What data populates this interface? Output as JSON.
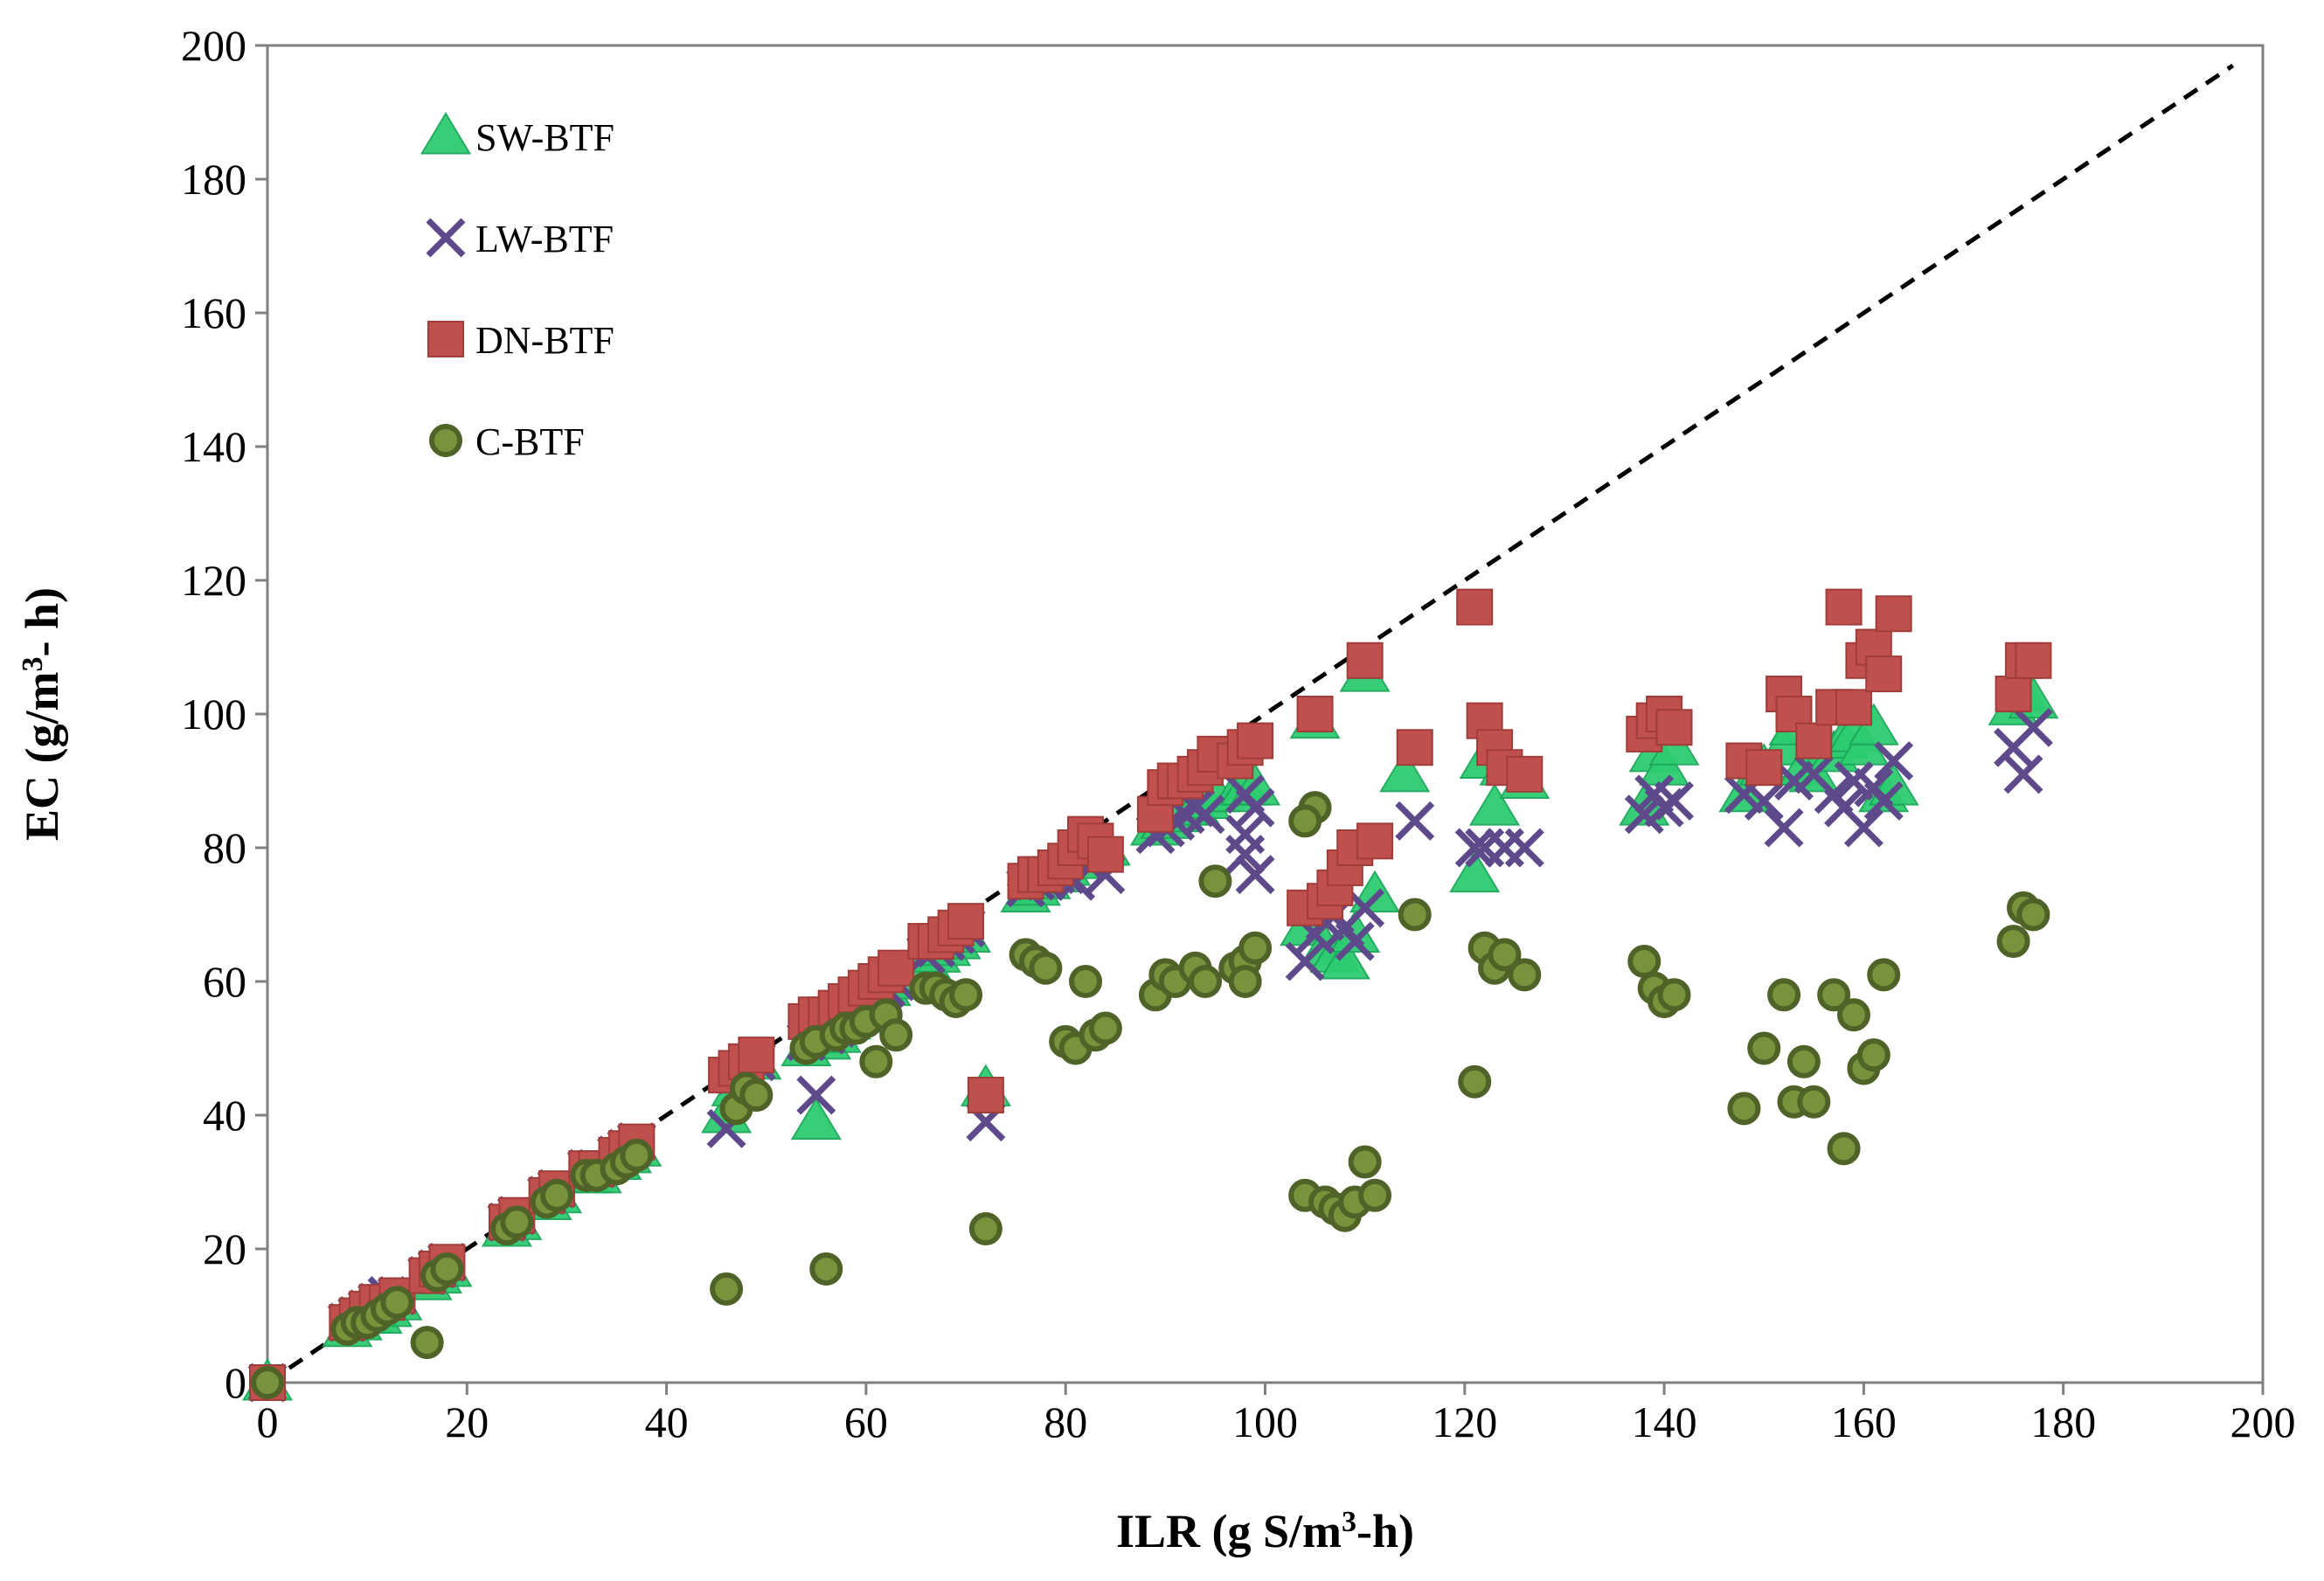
{
  "chart_data": {
    "type": "scatter",
    "title": "",
    "xlabel": "ILR (g S/m3-h)",
    "xlabel_parts": {
      "main": "ILR (g S/m",
      "sup": "3",
      "rest": "-h)"
    },
    "ylabel": "EC (g/m3- h)",
    "ylabel_parts": {
      "main": "EC (g/m",
      "sup": "3",
      "rest": "- h)"
    },
    "xlim": [
      0,
      200
    ],
    "ylim": [
      0,
      200
    ],
    "xticks": [
      "0",
      "20",
      "40",
      "60",
      "80",
      "100",
      "120",
      "140",
      "160",
      "180",
      "200"
    ],
    "yticks": [
      "0",
      "20",
      "40",
      "60",
      "80",
      "100",
      "120",
      "140",
      "160",
      "180",
      "200"
    ],
    "grid": false,
    "legend_position": "top-left",
    "reference_line": {
      "name": "100% removal (1:1 line)",
      "style": "dashed",
      "x": [
        0,
        197
      ],
      "y": [
        0,
        197
      ]
    },
    "series": [
      {
        "name": "SW-BTF",
        "marker": "triangle",
        "color": "#2ecc71",
        "stroke": "#1aa85a",
        "x": [
          0,
          8,
          9,
          10,
          11,
          12,
          13,
          16,
          17,
          18,
          24,
          25,
          28,
          29,
          32,
          33,
          35,
          36,
          37,
          46,
          47,
          48,
          49,
          54,
          55,
          56,
          57,
          58,
          59,
          60,
          61,
          62,
          63,
          66,
          67,
          68,
          69,
          70,
          72,
          76,
          77,
          78,
          79,
          80,
          81,
          82,
          83,
          84,
          89,
          90,
          91,
          92,
          93,
          94,
          95,
          97,
          98,
          99,
          104,
          105,
          106,
          107,
          108,
          109,
          110,
          111,
          114,
          121,
          122,
          123,
          124,
          126,
          138,
          139,
          140,
          141,
          148,
          150,
          152,
          153,
          154,
          155,
          157,
          158,
          159,
          160,
          161,
          162,
          163,
          175,
          176,
          177
        ],
        "y": [
          0,
          8,
          9,
          10,
          10,
          11,
          12,
          15,
          16,
          17,
          23,
          24,
          27,
          28,
          31,
          31,
          33,
          34,
          35,
          40,
          44,
          46,
          48,
          50,
          39,
          51,
          52,
          54,
          55,
          56,
          57,
          59,
          60,
          63,
          64,
          65,
          66,
          67,
          44,
          73,
          74,
          75,
          76,
          77,
          78,
          79,
          79,
          80,
          83,
          84,
          85,
          86,
          86,
          87,
          88,
          88,
          89,
          89,
          68,
          99,
          65,
          64,
          63,
          67,
          106,
          73,
          91,
          76,
          93,
          86,
          92,
          90,
          86,
          94,
          92,
          95,
          88,
          92,
          95,
          98,
          92,
          91,
          94,
          96,
          97,
          95,
          98,
          88,
          89,
          101,
          103,
          102
        ]
      },
      {
        "name": "LW-BTF",
        "marker": "x",
        "color": "#5e4a8b",
        "stroke": "#5e4a8b",
        "x": [
          0,
          8,
          9,
          10,
          11,
          12,
          13,
          16,
          17,
          18,
          24,
          25,
          28,
          29,
          32,
          33,
          35,
          36,
          37,
          46,
          47,
          48,
          49,
          54,
          55,
          56,
          57,
          58,
          59,
          60,
          61,
          62,
          63,
          66,
          67,
          68,
          69,
          70,
          72,
          76,
          77,
          78,
          79,
          80,
          81,
          82,
          83,
          84,
          89,
          90,
          91,
          92,
          93,
          94,
          98,
          99,
          98,
          99,
          98,
          104,
          105,
          106,
          107,
          108,
          109,
          110,
          115,
          121,
          122,
          124,
          126,
          138,
          139,
          140,
          141,
          148,
          150,
          152,
          153,
          155,
          157,
          158,
          159,
          160,
          161,
          162,
          163,
          175,
          176,
          177
        ],
        "y": [
          0,
          9,
          10,
          11,
          12,
          13,
          13,
          16,
          17,
          18,
          24,
          25,
          28,
          29,
          32,
          32,
          34,
          35,
          36,
          38,
          46,
          47,
          48,
          51,
          43,
          52,
          53,
          55,
          56,
          57,
          58,
          59,
          60,
          64,
          65,
          66,
          67,
          68,
          39,
          74,
          75,
          75,
          76,
          76,
          75,
          78,
          79,
          76,
          82,
          83,
          84,
          85,
          86,
          85,
          79,
          86,
          82,
          76,
          88,
          63,
          67,
          69,
          70,
          68,
          66,
          71,
          84,
          80,
          80,
          80,
          80,
          85,
          88,
          86,
          87,
          88,
          87,
          83,
          90,
          91,
          88,
          86,
          90,
          83,
          89,
          87,
          93,
          95,
          91,
          98
        ]
      },
      {
        "name": "DN-BTF",
        "marker": "square",
        "color": "#c0504d",
        "stroke": "#a03d3a",
        "x": [
          0,
          8,
          9,
          10,
          11,
          12,
          13,
          16,
          17,
          18,
          24,
          25,
          28,
          29,
          32,
          33,
          35,
          36,
          37,
          46,
          47,
          48,
          49,
          54,
          55,
          56,
          57,
          58,
          59,
          60,
          61,
          62,
          63,
          66,
          67,
          68,
          69,
          70,
          72,
          76,
          77,
          78,
          79,
          80,
          81,
          82,
          83,
          84,
          89,
          90,
          91,
          92,
          93,
          94,
          95,
          97,
          98,
          99,
          104,
          105,
          106,
          107,
          108,
          109,
          110,
          111,
          115,
          121,
          122,
          123,
          124,
          126,
          138,
          139,
          140,
          141,
          148,
          150,
          152,
          153,
          155,
          157,
          158,
          159,
          160,
          161,
          162,
          163,
          175,
          176,
          177
        ],
        "y": [
          0,
          9,
          10,
          11,
          12,
          12,
          13,
          16,
          17,
          18,
          24,
          25,
          28,
          29,
          32,
          32,
          34,
          35,
          36,
          46,
          47,
          48,
          49,
          54,
          55,
          55,
          56,
          57,
          58,
          59,
          60,
          61,
          62,
          66,
          66,
          67,
          68,
          69,
          43,
          75,
          76,
          76,
          77,
          78,
          80,
          82,
          81,
          79,
          85,
          89,
          90,
          90,
          91,
          92,
          94,
          93,
          95,
          96,
          71,
          100,
          72,
          74,
          77,
          80,
          108,
          81,
          95,
          116,
          99,
          95,
          92,
          91,
          97,
          99,
          100,
          98,
          93,
          92,
          103,
          100,
          96,
          101,
          116,
          101,
          108,
          110,
          106,
          115,
          103,
          108,
          108
        ]
      },
      {
        "name": "C-BTF",
        "marker": "circle",
        "color": "#77933c",
        "stroke": "#4f6228",
        "x": [
          0,
          8,
          9,
          10,
          11,
          12,
          13,
          16,
          17,
          18,
          24,
          25,
          28,
          29,
          32,
          33,
          35,
          36,
          37,
          46,
          47,
          48,
          49,
          54,
          55,
          56,
          57,
          58,
          59,
          60,
          61,
          62,
          63,
          66,
          67,
          68,
          69,
          70,
          72,
          76,
          77,
          78,
          80,
          81,
          82,
          83,
          84,
          89,
          90,
          91,
          93,
          94,
          95,
          97,
          98,
          99,
          98,
          104,
          105,
          104,
          106,
          107,
          108,
          109,
          110,
          111,
          115,
          121,
          122,
          123,
          124,
          126,
          138,
          139,
          140,
          141,
          148,
          150,
          152,
          153,
          154,
          155,
          157,
          158,
          159,
          160,
          161,
          162,
          175,
          176,
          177
        ],
        "y": [
          0,
          8,
          9,
          9,
          10,
          11,
          12,
          6,
          16,
          17,
          23,
          24,
          27,
          28,
          31,
          31,
          32,
          33,
          34,
          14,
          41,
          44,
          43,
          50,
          51,
          17,
          52,
          53,
          53,
          54,
          48,
          55,
          52,
          59,
          59,
          58,
          57,
          58,
          23,
          64,
          63,
          62,
          51,
          50,
          60,
          52,
          53,
          58,
          61,
          60,
          62,
          60,
          75,
          62,
          63,
          65,
          60,
          28,
          86,
          84,
          27,
          26,
          25,
          27,
          33,
          28,
          70,
          45,
          65,
          62,
          64,
          61,
          63,
          59,
          57,
          58,
          41,
          50,
          58,
          42,
          48,
          42,
          58,
          35,
          55,
          47,
          49,
          61,
          66,
          71,
          70
        ]
      }
    ]
  }
}
